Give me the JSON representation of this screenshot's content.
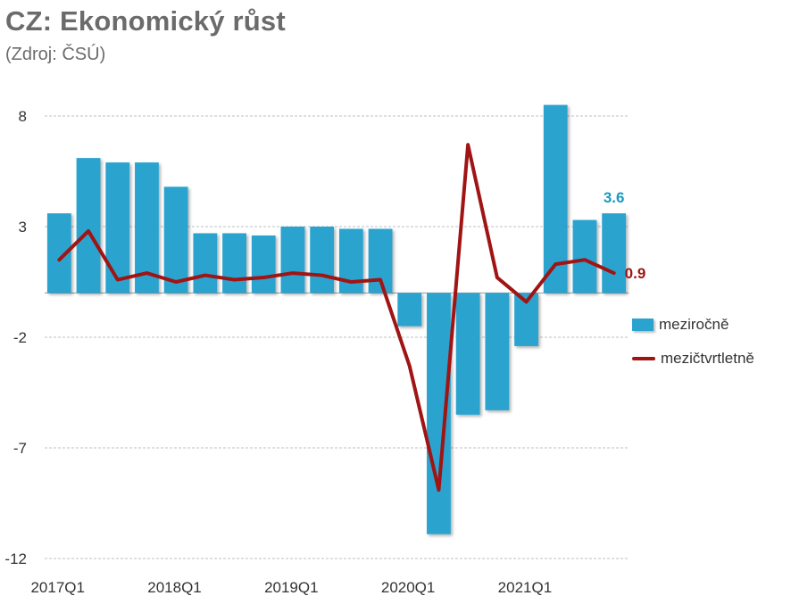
{
  "header": {
    "title": "CZ: Ekonomický růst",
    "subtitle": "(Zdroj: ČSÚ)"
  },
  "legend": {
    "bar_label": "meziročně",
    "line_label": "mezičtvrtletně"
  },
  "colors": {
    "bar": "#2aa3cf",
    "line": "#a01414",
    "bar_label": "#1a9ac0",
    "grid": "#bfbfbf"
  },
  "chart_data": {
    "type": "bar+line",
    "title": "CZ: Ekonomický růst",
    "subtitle": "(Zdroj: ČSÚ)",
    "ylim": [
      -12,
      8
    ],
    "yticks": [
      "8",
      "3",
      "-2",
      "-7",
      "-12"
    ],
    "ytick_values": [
      8,
      3,
      -2,
      -7,
      -12
    ],
    "categories": [
      "2017Q1",
      "2017Q2",
      "2017Q3",
      "2017Q4",
      "2018Q1",
      "2018Q2",
      "2018Q3",
      "2018Q4",
      "2019Q1",
      "2019Q2",
      "2019Q3",
      "2019Q4",
      "2020Q1",
      "2020Q2",
      "2020Q3",
      "2020Q4",
      "2021Q1",
      "2021Q2",
      "2021Q3",
      "2021Q4"
    ],
    "xtick_labels": [
      "2017Q1",
      "2018Q1",
      "2019Q1",
      "2020Q1",
      "2021Q1"
    ],
    "xtick_indices": [
      0,
      4,
      8,
      12,
      16
    ],
    "series": [
      {
        "name": "meziročně",
        "kind": "bar",
        "values": [
          3.6,
          6.1,
          5.9,
          5.9,
          4.8,
          2.7,
          2.7,
          2.6,
          3.0,
          3.0,
          2.9,
          2.9,
          -1.5,
          -10.9,
          -5.5,
          -5.3,
          -2.4,
          8.5,
          3.3,
          3.6
        ]
      },
      {
        "name": "mezičtvrtletně",
        "kind": "line",
        "values": [
          1.5,
          2.8,
          0.6,
          0.9,
          0.5,
          0.8,
          0.6,
          0.7,
          0.9,
          0.8,
          0.5,
          0.6,
          -3.3,
          -8.9,
          6.7,
          0.7,
          -0.4,
          1.3,
          1.5,
          0.9
        ]
      }
    ],
    "annotations": {
      "last_bar_label": "3.6",
      "last_line_label": "0.9"
    }
  }
}
